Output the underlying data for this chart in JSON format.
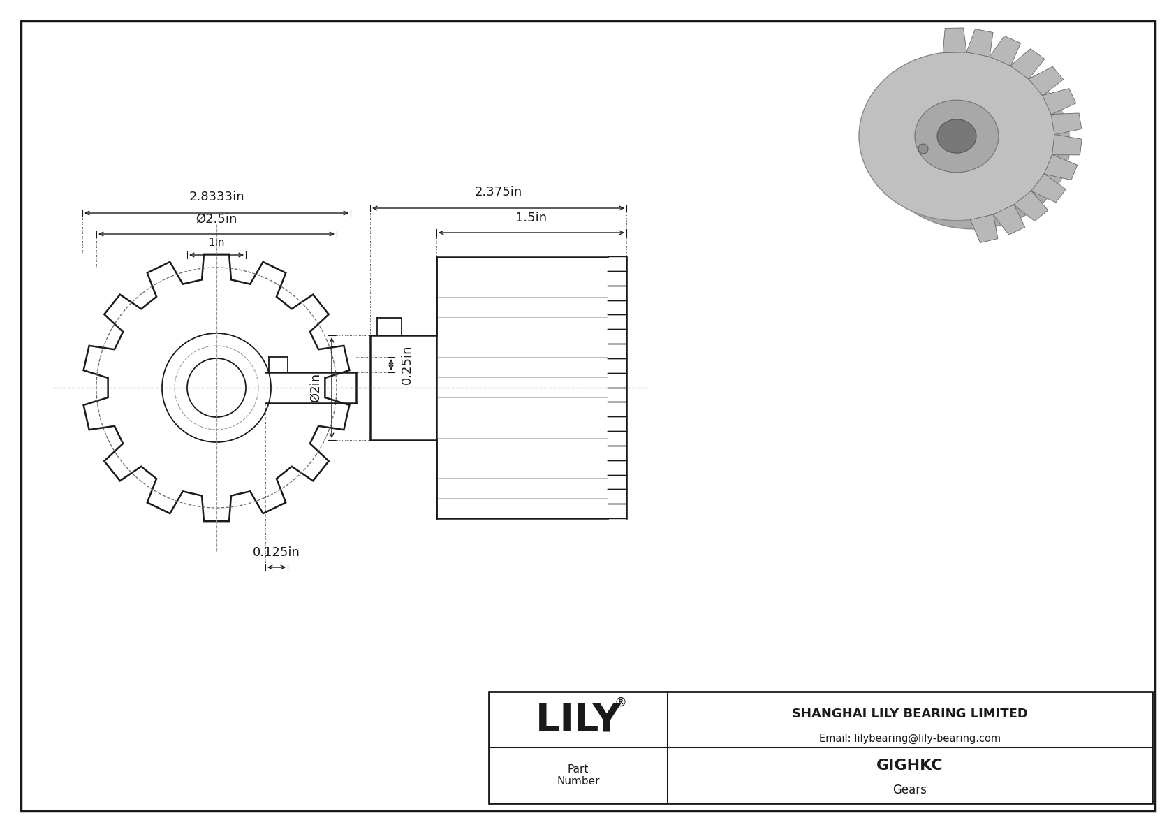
{
  "bg_color": "#ffffff",
  "lc": "#1a1a1a",
  "title_block": {
    "company": "SHANGHAI LILY BEARING LIMITED",
    "email": "Email: lilybearing@lily-bearing.com",
    "part_number_label": "Part\nNumber",
    "part_number": "GIGHKC",
    "product": "Gears",
    "brand": "LILY",
    "registered": "®"
  },
  "dim_outer": "2.8333in",
  "dim_pitch": "Ø2.5in",
  "dim_bore": "1in",
  "dim_len_tot": "2.375in",
  "dim_len_inn": "1.5in",
  "dim_shaft_d": "Ø2in",
  "dim_key_d": "0.25in",
  "dim_key_off": "0.125in",
  "n_teeth": 14,
  "n_teeth_side": 18
}
